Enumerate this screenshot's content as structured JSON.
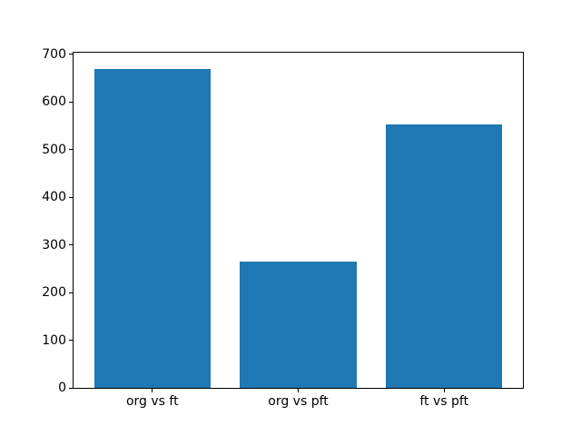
{
  "figure": {
    "background": "#ffffff"
  },
  "chart_data": {
    "type": "bar",
    "categories": [
      "org vs ft",
      "org vs pft",
      "ft vs pft"
    ],
    "values": [
      670,
      265,
      552
    ],
    "title": "",
    "xlabel": "",
    "ylabel": "",
    "ylim": [
      0,
      703.5
    ],
    "yticks": [
      0,
      100,
      200,
      300,
      400,
      500,
      600,
      700
    ],
    "bar_color": "#1f77b4",
    "axis_color": "#000000",
    "text_color": "#000000",
    "grid": false,
    "legend_position": "none",
    "bar_width_fraction": 0.8
  }
}
